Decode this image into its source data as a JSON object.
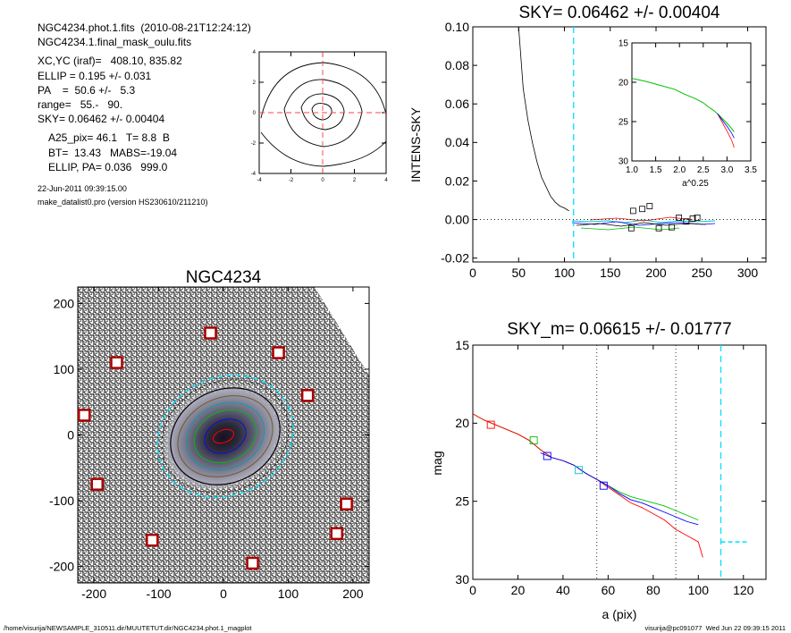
{
  "header": {
    "line1": "NGC4234.phot.1.fits  (2010-08-21T12:24:12)",
    "line2": "NGC4234.1.final_mask_oulu.fits",
    "line3": "XC,YC (iraf)=   408.10, 835.82",
    "line4": "ELLIP = 0.195 +/- 0.031",
    "line5": "PA    =  50.6 +/-   5.3",
    "line6": "range=   55.-   90.",
    "line7": "SKY= 0.06462 +/- 0.00404",
    "line8": "A25_pix= 46.1   T= 8.8  B",
    "line9": "BT=  13.43   MABS=-19.04",
    "line10": "ELLIP, PA= 0.036   999.0",
    "date": "22-Jun-2011 09:39:15.00",
    "program": "make_datalist0.pro (version HS230610/211210)"
  },
  "footer": {
    "path": "/home/visurija/NEWSAMPLE_310511.dir/MUUTETUT.dir/NGC4234.phot.1_magplot",
    "user": "visurija@pc091077  Wed Jun 22 09:39:15 2011"
  },
  "colors": {
    "sky_line": "#00e0ff",
    "profile_green": "#00c000",
    "profile_red": "#ff0000",
    "profile_blue": "#0000ff",
    "profile_cyan": "#00c8c8",
    "mask_box": "#aa0000"
  },
  "chart_data": [
    {
      "id": "contour",
      "type": "contour",
      "xlim": [
        -4,
        4
      ],
      "ylim": [
        -4,
        4
      ],
      "xticks": [
        "-4",
        "-2",
        "0",
        "2",
        "4"
      ],
      "yticks": [
        "-4",
        "-2",
        "0",
        "2",
        "4"
      ],
      "center": [
        0,
        0
      ]
    },
    {
      "id": "sky",
      "type": "line",
      "title": "SKY= 0.06462 +/- 0.00404",
      "xlabel": "",
      "ylabel": "INTENS-SKY",
      "xlim": [
        0,
        320
      ],
      "ylim": [
        -0.022,
        0.1
      ],
      "xticks": [
        "0",
        "50",
        "100",
        "150",
        "200",
        "250",
        "300"
      ],
      "yticks": [
        "-0.02",
        "0.00",
        "0.02",
        "0.04",
        "0.06",
        "0.08",
        "0.10"
      ],
      "sky_radius": 110,
      "x": [
        50,
        55,
        60,
        65,
        70,
        75,
        80,
        85,
        90,
        95,
        100,
        105
      ],
      "y": [
        0.1,
        0.068,
        0.052,
        0.04,
        0.03,
        0.022,
        0.017,
        0.012,
        0.009,
        0.007,
        0.006,
        0.0045
      ],
      "boxes": [
        [
          173,
          -0.0045
        ],
        [
          175,
          0.0045
        ],
        [
          185,
          0.0055
        ],
        [
          193,
          0.007
        ],
        [
          203,
          -0.0045
        ],
        [
          217,
          -0.004
        ],
        [
          225,
          0.001
        ],
        [
          233,
          -0.001
        ],
        [
          240,
          0.0005
        ],
        [
          245,
          0.001
        ]
      ],
      "inset": {
        "xlabel": "a^0.25",
        "xlim": [
          1.0,
          3.5
        ],
        "ylim": [
          15,
          30
        ],
        "xticks": [
          "1.0",
          "1.5",
          "2.0",
          "2.5",
          "3.0",
          "3.5"
        ],
        "yticks": [
          "15",
          "20",
          "25",
          "30"
        ],
        "x": [
          1.0,
          1.3,
          1.6,
          1.9,
          2.1,
          2.3,
          2.5,
          2.6,
          2.7,
          2.8,
          2.9,
          3.0,
          3.1,
          3.15
        ],
        "y": [
          19.5,
          19.9,
          20.4,
          20.9,
          21.5,
          22.0,
          22.6,
          23.1,
          23.5,
          24.0,
          24.6,
          25.2,
          25.9,
          26.3
        ]
      }
    },
    {
      "id": "image",
      "type": "image",
      "title": "NGC4234",
      "xlim": [
        -225,
        225
      ],
      "ylim": [
        -225,
        225
      ],
      "xticks": [
        "-200",
        "-100",
        "0",
        "100",
        "200"
      ],
      "yticks": [
        "-200",
        "-100",
        "0",
        "100",
        "200"
      ],
      "mask_boxes": [
        [
          -20,
          155
        ],
        [
          85,
          125
        ],
        [
          -165,
          110
        ],
        [
          130,
          60
        ],
        [
          -215,
          30
        ],
        [
          -195,
          -75
        ],
        [
          190,
          -105
        ],
        [
          175,
          -150
        ],
        [
          -110,
          -160
        ],
        [
          45,
          -195
        ]
      ]
    },
    {
      "id": "mag",
      "type": "line",
      "title": "SKY_m=  0.06615 +/- 0.01777",
      "xlabel": "a (pix)",
      "ylabel": "mag",
      "xlim": [
        0,
        130
      ],
      "ylim": [
        15,
        30
      ],
      "xticks": [
        "0",
        "20",
        "40",
        "60",
        "80",
        "100",
        "120"
      ],
      "yticks": [
        "15",
        "20",
        "25",
        "30"
      ],
      "vlines": [
        55,
        90
      ],
      "sky_radius": 110,
      "sky_mag": 27.6,
      "series": [
        {
          "x": [
            0,
            5,
            10,
            15,
            20,
            25,
            30,
            35,
            40,
            45,
            50,
            55,
            60,
            65,
            70,
            75,
            80,
            85,
            90,
            95,
            100
          ],
          "y": [
            19.4,
            19.8,
            20.1,
            20.4,
            20.7,
            21.1,
            21.7,
            22.2,
            22.4,
            22.7,
            23.2,
            23.6,
            24.0,
            24.4,
            24.7,
            24.9,
            25.1,
            25.3,
            25.6,
            25.9,
            26.2
          ]
        },
        {
          "x": [
            0,
            5,
            10,
            15,
            20,
            25,
            30,
            35,
            40,
            45,
            50,
            55,
            60,
            65,
            70,
            75,
            80,
            85,
            90,
            95,
            100,
            102
          ],
          "y": [
            19.4,
            19.8,
            20.1,
            20.4,
            20.7,
            21.1,
            21.7,
            22.2,
            22.4,
            22.7,
            23.2,
            23.6,
            24.1,
            24.6,
            25.1,
            25.4,
            25.8,
            26.2,
            26.8,
            27.2,
            27.6,
            28.6
          ]
        },
        {
          "x": [
            30,
            35,
            40,
            45,
            50,
            55,
            60,
            65,
            70,
            75,
            80,
            85,
            90,
            95,
            100
          ],
          "y": [
            21.9,
            22.2,
            22.4,
            22.7,
            23.2,
            23.6,
            24.0,
            24.5,
            24.9,
            25.1,
            25.4,
            25.7,
            26.0,
            26.3,
            26.5
          ]
        }
      ],
      "boxes": [
        [
          8,
          20.1
        ],
        [
          27,
          21.1
        ],
        [
          33,
          22.1
        ],
        [
          47,
          23.0
        ],
        [
          58,
          24.0
        ]
      ]
    }
  ]
}
